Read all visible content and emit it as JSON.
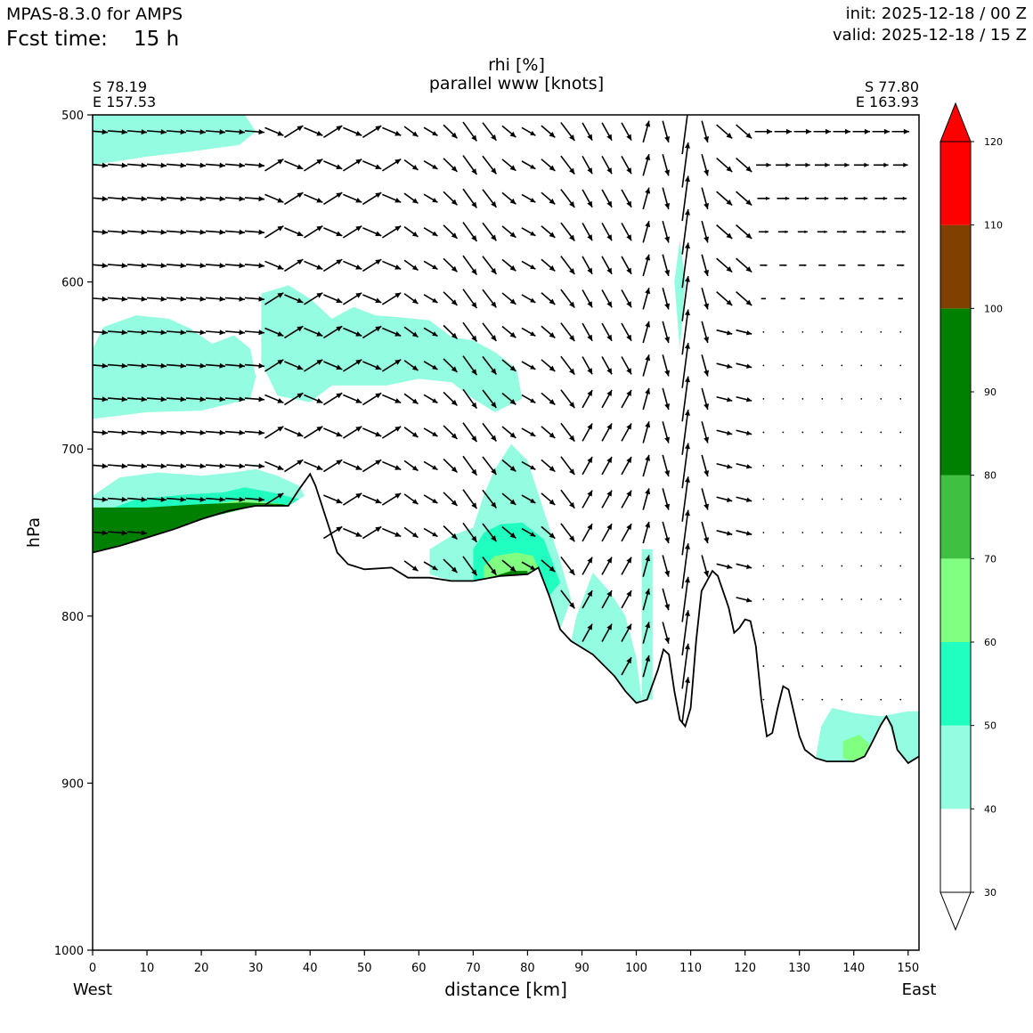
{
  "header": {
    "model_title": "MPAS-8.3.0 for AMPS",
    "fcst_label": "Fcst time:",
    "fcst_value": "15 h",
    "init_text": "init: 2025-12-18 / 00 Z",
    "valid_text": "valid: 2025-12-18 / 15 Z"
  },
  "chart_data": {
    "type": "cross-section (filled contour + vectors)",
    "title": "rhi [%]",
    "subtitle": "parallel www [knots]",
    "xlabel": "distance [km]",
    "ylabel": "hPa",
    "left_endpoint": {
      "lat": "S 78.19",
      "lon": "E 157.53",
      "side": "West"
    },
    "right_endpoint": {
      "lat": "S 77.80",
      "lon": "E 163.93",
      "side": "East"
    },
    "x_range": [
      0,
      152
    ],
    "y_range": [
      1000,
      500
    ],
    "x_ticks": [
      "0",
      "10",
      "20",
      "30",
      "40",
      "50",
      "60",
      "70",
      "80",
      "90",
      "100",
      "110",
      "120",
      "130",
      "140",
      "150"
    ],
    "y_ticks": [
      "500",
      "600",
      "700",
      "800",
      "900",
      "1000"
    ],
    "colorbar": {
      "levels": [
        30,
        40,
        50,
        60,
        70,
        80,
        90,
        100,
        110,
        120
      ],
      "tick_labels": [
        "30",
        "40",
        "50",
        "60",
        "70",
        "80",
        "90",
        "100",
        "110",
        "120"
      ],
      "colors": [
        "#ffffff",
        "#94fce0",
        "#20ffc0",
        "#80ff80",
        "#40c040",
        "#008000",
        "#008000",
        "#804000",
        "#ff0000"
      ],
      "over_color": "#ff0000",
      "under_color": "#ffffff"
    },
    "terrain_pressure_hpa": [
      [
        0,
        762
      ],
      [
        5,
        758
      ],
      [
        10,
        753
      ],
      [
        15,
        748
      ],
      [
        20,
        742
      ],
      [
        25,
        737
      ],
      [
        30,
        734
      ],
      [
        36,
        734
      ],
      [
        38,
        724
      ],
      [
        40,
        715
      ],
      [
        41,
        722
      ],
      [
        43,
        742
      ],
      [
        45,
        762
      ],
      [
        47,
        769
      ],
      [
        50,
        772
      ],
      [
        55,
        771
      ],
      [
        58,
        777
      ],
      [
        62,
        777
      ],
      [
        66,
        779
      ],
      [
        70,
        779
      ],
      [
        75,
        776
      ],
      [
        80,
        775
      ],
      [
        82,
        771
      ],
      [
        84,
        788
      ],
      [
        86,
        808
      ],
      [
        88,
        815
      ],
      [
        92,
        823
      ],
      [
        96,
        836
      ],
      [
        98,
        845
      ],
      [
        100,
        852
      ],
      [
        102,
        850
      ],
      [
        104,
        832
      ],
      [
        105,
        820
      ],
      [
        106,
        823
      ],
      [
        107,
        845
      ],
      [
        108,
        862
      ],
      [
        109,
        866
      ],
      [
        110,
        855
      ],
      [
        111,
        815
      ],
      [
        112,
        785
      ],
      [
        114,
        773
      ],
      [
        115,
        776
      ],
      [
        117,
        795
      ],
      [
        118,
        810
      ],
      [
        119,
        807
      ],
      [
        120,
        802
      ],
      [
        121,
        803
      ],
      [
        122,
        818
      ],
      [
        123,
        850
      ],
      [
        124,
        872
      ],
      [
        125,
        870
      ],
      [
        126,
        855
      ],
      [
        127,
        842
      ],
      [
        128,
        844
      ],
      [
        129,
        858
      ],
      [
        130,
        872
      ],
      [
        131,
        880
      ],
      [
        133,
        885
      ],
      [
        135,
        887
      ],
      [
        140,
        887
      ],
      [
        142,
        884
      ],
      [
        143,
        878
      ],
      [
        145,
        865
      ],
      [
        146,
        860
      ],
      [
        147,
        866
      ],
      [
        148,
        880
      ],
      [
        150,
        888
      ],
      [
        152,
        884
      ]
    ],
    "rh_regions": [
      {
        "rh_range": "40-50",
        "points": [
          [
            0,
            500
          ],
          [
            28,
            500
          ],
          [
            30,
            510
          ],
          [
            27,
            518
          ],
          [
            18,
            522
          ],
          [
            10,
            525
          ],
          [
            0,
            530
          ]
        ]
      },
      {
        "rh_range": "40-50",
        "points": [
          [
            0,
            640
          ],
          [
            2,
            627
          ],
          [
            8,
            620
          ],
          [
            14,
            622
          ],
          [
            18,
            628
          ],
          [
            22,
            637
          ],
          [
            26,
            632
          ],
          [
            29,
            640
          ],
          [
            30,
            657
          ],
          [
            29,
            670
          ],
          [
            20,
            677
          ],
          [
            10,
            678
          ],
          [
            0,
            682
          ]
        ]
      },
      {
        "rh_range": "40-50",
        "points": [
          [
            31,
            607
          ],
          [
            36,
            602
          ],
          [
            40,
            610
          ],
          [
            44,
            622
          ],
          [
            48,
            615
          ],
          [
            52,
            620
          ],
          [
            56,
            621
          ],
          [
            62,
            623
          ],
          [
            66,
            633
          ],
          [
            70,
            635
          ],
          [
            74,
            642
          ],
          [
            78,
            652
          ],
          [
            79,
            670
          ],
          [
            74,
            678
          ],
          [
            70,
            670
          ],
          [
            66,
            660
          ],
          [
            60,
            658
          ],
          [
            54,
            662
          ],
          [
            48,
            662
          ],
          [
            44,
            662
          ],
          [
            40,
            672
          ],
          [
            34,
            668
          ],
          [
            31,
            648
          ]
        ]
      },
      {
        "rh_range": "40-50",
        "points": [
          [
            0,
            728
          ],
          [
            5,
            717
          ],
          [
            12,
            714
          ],
          [
            20,
            716
          ],
          [
            26,
            714
          ],
          [
            30,
            712
          ],
          [
            34,
            716
          ],
          [
            38,
            722
          ],
          [
            39,
            728
          ],
          [
            36,
            734
          ],
          [
            30,
            734
          ],
          [
            20,
            742
          ],
          [
            10,
            753
          ],
          [
            0,
            762
          ]
        ]
      },
      {
        "rh_range": "40-50",
        "points": [
          [
            62,
            760
          ],
          [
            66,
            752
          ],
          [
            70,
            747
          ],
          [
            72,
            727
          ],
          [
            74,
            712
          ],
          [
            77,
            697
          ],
          [
            80,
            707
          ],
          [
            82,
            727
          ],
          [
            84,
            747
          ],
          [
            86,
            767
          ],
          [
            88,
            790
          ],
          [
            86,
            808
          ],
          [
            84,
            788
          ],
          [
            82,
            771
          ],
          [
            80,
            775
          ],
          [
            75,
            776
          ],
          [
            70,
            779
          ],
          [
            66,
            779
          ],
          [
            62,
            775
          ]
        ]
      },
      {
        "rh_range": "40-50",
        "points": [
          [
            92,
            774
          ],
          [
            95,
            785
          ],
          [
            98,
            800
          ],
          [
            100,
            825
          ],
          [
            101,
            850
          ],
          [
            100,
            852
          ],
          [
            96,
            836
          ],
          [
            92,
            823
          ],
          [
            88,
            815
          ],
          [
            89,
            800
          ]
        ]
      },
      {
        "rh_range": "40-50",
        "points": [
          [
            101,
            760
          ],
          [
            103,
            760
          ],
          [
            103,
            850
          ],
          [
            101,
            850
          ]
        ]
      },
      {
        "rh_range": "40-50",
        "points": [
          [
            107,
            600
          ],
          [
            108,
            575
          ],
          [
            109,
            600
          ],
          [
            108,
            640
          ]
        ]
      },
      {
        "rh_range": "40-50",
        "points": [
          [
            134,
            866
          ],
          [
            136,
            855
          ],
          [
            140,
            858
          ],
          [
            145,
            860
          ],
          [
            150,
            857
          ],
          [
            152,
            857
          ],
          [
            152,
            884
          ],
          [
            150,
            888
          ],
          [
            148,
            880
          ],
          [
            146,
            860
          ],
          [
            145,
            865
          ],
          [
            143,
            878
          ],
          [
            142,
            884
          ],
          [
            140,
            887
          ],
          [
            135,
            887
          ],
          [
            133,
            885
          ]
        ]
      },
      {
        "rh_range": "50-60",
        "points": [
          [
            0,
            740
          ],
          [
            8,
            730
          ],
          [
            18,
            727
          ],
          [
            24,
            726
          ],
          [
            28,
            723
          ],
          [
            33,
            726
          ],
          [
            38,
            730
          ],
          [
            36,
            734
          ],
          [
            30,
            734
          ],
          [
            20,
            742
          ],
          [
            10,
            753
          ],
          [
            0,
            762
          ]
        ]
      },
      {
        "rh_range": "50-60",
        "points": [
          [
            70,
            760
          ],
          [
            72,
            750
          ],
          [
            75,
            745
          ],
          [
            79,
            744
          ],
          [
            83,
            754
          ],
          [
            86,
            780
          ],
          [
            84,
            788
          ],
          [
            82,
            771
          ],
          [
            80,
            775
          ],
          [
            75,
            776
          ],
          [
            70,
            779
          ]
        ]
      },
      {
        "rh_range": "60-70",
        "points": [
          [
            0,
            745
          ],
          [
            10,
            736
          ],
          [
            20,
            734
          ],
          [
            28,
            730
          ],
          [
            35,
            733
          ],
          [
            36,
            734
          ],
          [
            30,
            734
          ],
          [
            20,
            742
          ],
          [
            10,
            753
          ],
          [
            0,
            762
          ]
        ]
      },
      {
        "rh_range": "60-70",
        "points": [
          [
            72,
            770
          ],
          [
            74,
            764
          ],
          [
            78,
            762
          ],
          [
            81,
            764
          ],
          [
            82,
            771
          ],
          [
            80,
            775
          ],
          [
            75,
            776
          ],
          [
            72,
            778
          ]
        ]
      },
      {
        "rh_range": "60-70",
        "points": [
          [
            138,
            875
          ],
          [
            141,
            871
          ],
          [
            143,
            877
          ],
          [
            142,
            884
          ],
          [
            140,
            887
          ],
          [
            138,
            885
          ]
        ]
      },
      {
        "rh_range": "80-90",
        "points": [
          [
            0,
            735
          ],
          [
            10,
            735
          ],
          [
            20,
            733
          ],
          [
            28,
            732
          ],
          [
            35,
            733
          ],
          [
            36,
            734
          ],
          [
            30,
            734
          ],
          [
            20,
            742
          ],
          [
            10,
            753
          ],
          [
            0,
            762
          ]
        ]
      },
      {
        "rh_range": "80-90",
        "points": [
          [
            74,
            776
          ],
          [
            77,
            773
          ],
          [
            80,
            773
          ],
          [
            80,
            775
          ],
          [
            75,
            776
          ]
        ]
      }
    ],
    "wind_vectors_note": "parallel wind / vertical motion vectors on a regular grid (arrows drawn ~every 3.6 km and 20 hPa); strong westerly flow aloft in the west, near-calm in the east, strong vertical motion near 100-112 km"
  }
}
